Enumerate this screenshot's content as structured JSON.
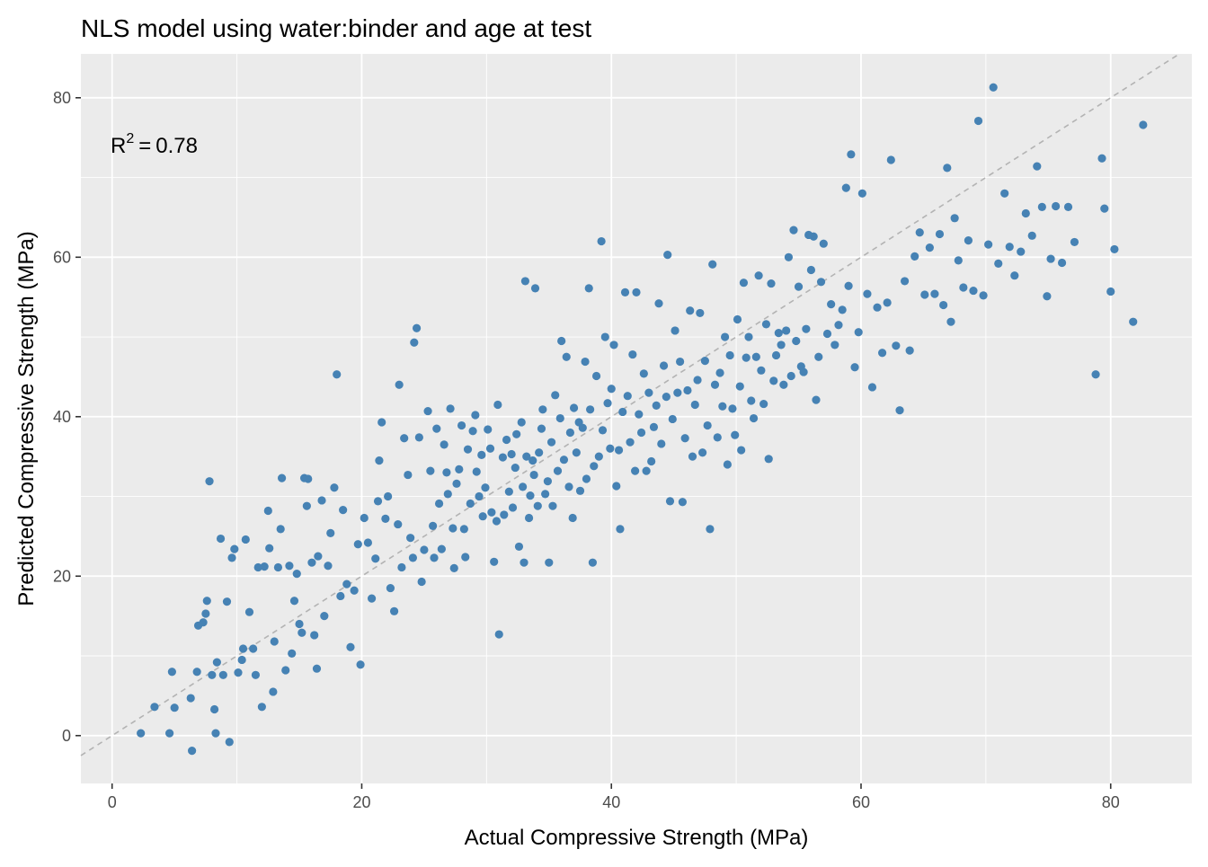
{
  "chart_data": {
    "type": "scatter",
    "title": "NLS model using water:binder and age at test",
    "xlabel": "Actual Compressive Strength (MPa)",
    "ylabel": "Predicted Compressive Strength (MPa)",
    "xlim": [
      -2.5,
      86.5
    ],
    "ylim": [
      -6,
      85.5
    ],
    "x_ticks": [
      0,
      20,
      40,
      60,
      80
    ],
    "y_ticks": [
      0,
      20,
      40,
      60,
      80
    ],
    "x_minor": [
      10,
      30,
      50,
      70
    ],
    "y_minor": [
      10,
      30,
      50,
      70
    ],
    "annotation": {
      "base": "R",
      "exponent": "2",
      "operator": "=",
      "value": "0.78"
    },
    "reference_line": {
      "type": "identity",
      "style": "dashed",
      "color": "#b3b3b3"
    },
    "colors": {
      "panel": "#ebebeb",
      "grid": "#ffffff",
      "point": "#4682b4"
    },
    "grid": true,
    "legend": "none",
    "points": [
      [
        2.3,
        0.3
      ],
      [
        3.4,
        3.6
      ],
      [
        4.6,
        0.3
      ],
      [
        4.8,
        8.0
      ],
      [
        5.0,
        3.5
      ],
      [
        6.3,
        4.7
      ],
      [
        6.4,
        -1.9
      ],
      [
        6.8,
        8.0
      ],
      [
        6.9,
        13.8
      ],
      [
        7.3,
        14.2
      ],
      [
        7.5,
        15.3
      ],
      [
        7.6,
        16.9
      ],
      [
        7.8,
        31.9
      ],
      [
        8.0,
        7.6
      ],
      [
        8.2,
        3.3
      ],
      [
        8.3,
        0.3
      ],
      [
        8.4,
        9.2
      ],
      [
        8.7,
        24.7
      ],
      [
        8.9,
        7.6
      ],
      [
        9.2,
        16.8
      ],
      [
        9.4,
        -0.8
      ],
      [
        9.6,
        22.3
      ],
      [
        9.8,
        23.4
      ],
      [
        10.1,
        7.9
      ],
      [
        10.4,
        9.5
      ],
      [
        10.5,
        10.9
      ],
      [
        10.7,
        24.6
      ],
      [
        11.0,
        15.5
      ],
      [
        11.3,
        10.9
      ],
      [
        11.5,
        7.6
      ],
      [
        11.7,
        21.1
      ],
      [
        12.0,
        3.6
      ],
      [
        12.2,
        21.2
      ],
      [
        12.5,
        28.2
      ],
      [
        12.6,
        23.5
      ],
      [
        12.9,
        5.5
      ],
      [
        13.0,
        11.8
      ],
      [
        13.3,
        21.1
      ],
      [
        13.5,
        25.9
      ],
      [
        13.6,
        32.3
      ],
      [
        13.9,
        8.2
      ],
      [
        14.2,
        21.3
      ],
      [
        14.4,
        10.3
      ],
      [
        14.6,
        16.9
      ],
      [
        14.8,
        20.3
      ],
      [
        15.0,
        14.0
      ],
      [
        15.2,
        12.9
      ],
      [
        15.4,
        32.3
      ],
      [
        15.6,
        28.8
      ],
      [
        15.7,
        32.2
      ],
      [
        16.0,
        21.7
      ],
      [
        16.2,
        12.6
      ],
      [
        16.4,
        8.4
      ],
      [
        16.5,
        22.5
      ],
      [
        16.8,
        29.5
      ],
      [
        17.0,
        15.0
      ],
      [
        17.3,
        21.3
      ],
      [
        17.5,
        25.4
      ],
      [
        17.8,
        31.1
      ],
      [
        18.0,
        45.3
      ],
      [
        18.3,
        17.5
      ],
      [
        18.5,
        28.3
      ],
      [
        18.8,
        19.0
      ],
      [
        19.1,
        11.1
      ],
      [
        19.4,
        18.2
      ],
      [
        19.7,
        24.0
      ],
      [
        19.9,
        8.9
      ],
      [
        20.2,
        27.3
      ],
      [
        20.5,
        24.2
      ],
      [
        20.8,
        17.2
      ],
      [
        21.1,
        22.2
      ],
      [
        21.3,
        29.4
      ],
      [
        21.4,
        34.5
      ],
      [
        21.6,
        39.3
      ],
      [
        21.9,
        27.2
      ],
      [
        22.1,
        30.0
      ],
      [
        22.3,
        18.5
      ],
      [
        22.6,
        15.6
      ],
      [
        22.9,
        26.5
      ],
      [
        23.0,
        44.0
      ],
      [
        23.2,
        21.1
      ],
      [
        23.4,
        37.3
      ],
      [
        23.7,
        32.7
      ],
      [
        23.9,
        24.8
      ],
      [
        24.1,
        22.3
      ],
      [
        24.2,
        49.3
      ],
      [
        24.4,
        51.1
      ],
      [
        24.6,
        37.4
      ],
      [
        24.8,
        19.3
      ],
      [
        25.0,
        23.3
      ],
      [
        25.3,
        40.7
      ],
      [
        25.5,
        33.2
      ],
      [
        25.7,
        26.3
      ],
      [
        25.8,
        22.3
      ],
      [
        26.0,
        38.5
      ],
      [
        26.2,
        29.1
      ],
      [
        26.4,
        23.4
      ],
      [
        26.6,
        36.5
      ],
      [
        26.8,
        33.0
      ],
      [
        26.9,
        30.3
      ],
      [
        27.1,
        41.0
      ],
      [
        27.3,
        26.0
      ],
      [
        27.4,
        21.0
      ],
      [
        27.6,
        31.6
      ],
      [
        27.8,
        33.4
      ],
      [
        28.0,
        38.9
      ],
      [
        28.2,
        25.9
      ],
      [
        28.3,
        22.4
      ],
      [
        28.5,
        35.9
      ],
      [
        28.7,
        29.1
      ],
      [
        28.9,
        38.2
      ],
      [
        29.1,
        40.2
      ],
      [
        29.2,
        33.1
      ],
      [
        29.4,
        30.0
      ],
      [
        29.6,
        35.2
      ],
      [
        29.7,
        27.5
      ],
      [
        29.9,
        31.1
      ],
      [
        30.1,
        38.4
      ],
      [
        30.3,
        36.0
      ],
      [
        30.4,
        28.0
      ],
      [
        30.6,
        21.8
      ],
      [
        30.8,
        26.9
      ],
      [
        30.9,
        41.5
      ],
      [
        31.0,
        12.7
      ],
      [
        31.3,
        34.9
      ],
      [
        31.4,
        27.7
      ],
      [
        31.6,
        37.1
      ],
      [
        31.8,
        30.6
      ],
      [
        32.0,
        35.3
      ],
      [
        32.1,
        28.6
      ],
      [
        32.3,
        33.6
      ],
      [
        32.4,
        37.8
      ],
      [
        32.6,
        23.7
      ],
      [
        32.8,
        39.3
      ],
      [
        32.9,
        31.2
      ],
      [
        33.0,
        21.7
      ],
      [
        33.1,
        57.0
      ],
      [
        33.2,
        35.0
      ],
      [
        33.4,
        27.3
      ],
      [
        33.5,
        30.1
      ],
      [
        33.7,
        34.5
      ],
      [
        33.8,
        32.7
      ],
      [
        33.9,
        56.1
      ],
      [
        34.1,
        28.8
      ],
      [
        34.2,
        35.5
      ],
      [
        34.4,
        38.5
      ],
      [
        34.5,
        40.9
      ],
      [
        34.7,
        30.3
      ],
      [
        34.9,
        31.9
      ],
      [
        35.0,
        21.7
      ],
      [
        35.2,
        36.8
      ],
      [
        35.3,
        28.8
      ],
      [
        35.5,
        42.7
      ],
      [
        35.7,
        33.2
      ],
      [
        35.9,
        39.8
      ],
      [
        36.0,
        49.5
      ],
      [
        36.2,
        34.6
      ],
      [
        36.4,
        47.5
      ],
      [
        36.6,
        31.2
      ],
      [
        36.7,
        38.0
      ],
      [
        36.9,
        27.3
      ],
      [
        37.0,
        41.1
      ],
      [
        37.2,
        35.5
      ],
      [
        37.4,
        39.3
      ],
      [
        37.5,
        30.7
      ],
      [
        37.7,
        38.6
      ],
      [
        37.9,
        46.9
      ],
      [
        38.0,
        32.2
      ],
      [
        38.2,
        56.1
      ],
      [
        38.3,
        40.9
      ],
      [
        38.5,
        21.7
      ],
      [
        38.6,
        33.8
      ],
      [
        38.8,
        45.1
      ],
      [
        39.0,
        35.0
      ],
      [
        39.2,
        62.0
      ],
      [
        39.3,
        38.3
      ],
      [
        39.5,
        50.0
      ],
      [
        39.7,
        41.7
      ],
      [
        39.9,
        36.0
      ],
      [
        40.0,
        43.5
      ],
      [
        40.2,
        49.0
      ],
      [
        40.4,
        31.3
      ],
      [
        40.6,
        35.8
      ],
      [
        40.7,
        25.9
      ],
      [
        40.9,
        40.6
      ],
      [
        41.1,
        55.6
      ],
      [
        41.3,
        42.6
      ],
      [
        41.5,
        36.8
      ],
      [
        41.7,
        47.8
      ],
      [
        41.9,
        33.2
      ],
      [
        42.0,
        55.6
      ],
      [
        42.2,
        40.3
      ],
      [
        42.4,
        38.0
      ],
      [
        42.6,
        45.4
      ],
      [
        42.8,
        33.2
      ],
      [
        43.0,
        43.0
      ],
      [
        43.2,
        34.4
      ],
      [
        43.4,
        38.7
      ],
      [
        43.6,
        41.4
      ],
      [
        43.8,
        54.2
      ],
      [
        44.0,
        36.6
      ],
      [
        44.2,
        46.4
      ],
      [
        44.4,
        42.5
      ],
      [
        44.5,
        60.3
      ],
      [
        44.7,
        29.4
      ],
      [
        44.9,
        39.7
      ],
      [
        45.1,
        50.8
      ],
      [
        45.3,
        43.0
      ],
      [
        45.5,
        46.9
      ],
      [
        45.7,
        29.3
      ],
      [
        45.9,
        37.3
      ],
      [
        46.1,
        43.3
      ],
      [
        46.3,
        53.3
      ],
      [
        46.5,
        35.0
      ],
      [
        46.7,
        41.5
      ],
      [
        46.9,
        44.6
      ],
      [
        47.1,
        53.0
      ],
      [
        47.3,
        35.5
      ],
      [
        47.5,
        47.0
      ],
      [
        47.7,
        38.9
      ],
      [
        47.9,
        25.9
      ],
      [
        48.1,
        59.1
      ],
      [
        48.3,
        44.0
      ],
      [
        48.5,
        37.4
      ],
      [
        48.7,
        45.5
      ],
      [
        48.9,
        41.3
      ],
      [
        49.1,
        50.0
      ],
      [
        49.3,
        34.0
      ],
      [
        49.5,
        47.7
      ],
      [
        49.7,
        41.0
      ],
      [
        49.9,
        37.7
      ],
      [
        50.1,
        52.2
      ],
      [
        50.3,
        43.8
      ],
      [
        50.4,
        35.8
      ],
      [
        50.6,
        56.8
      ],
      [
        50.8,
        47.4
      ],
      [
        51.0,
        50.0
      ],
      [
        51.2,
        42.0
      ],
      [
        51.4,
        39.8
      ],
      [
        51.6,
        47.5
      ],
      [
        51.8,
        57.7
      ],
      [
        52.0,
        45.8
      ],
      [
        52.2,
        41.6
      ],
      [
        52.4,
        51.6
      ],
      [
        52.6,
        34.7
      ],
      [
        52.8,
        56.7
      ],
      [
        53.0,
        44.5
      ],
      [
        53.2,
        47.7
      ],
      [
        53.4,
        50.5
      ],
      [
        53.6,
        49.0
      ],
      [
        53.8,
        44.0
      ],
      [
        54.0,
        50.8
      ],
      [
        54.2,
        60.0
      ],
      [
        54.4,
        45.1
      ],
      [
        54.6,
        63.4
      ],
      [
        54.8,
        49.5
      ],
      [
        55.0,
        56.3
      ],
      [
        55.2,
        46.3
      ],
      [
        55.4,
        45.6
      ],
      [
        55.6,
        51.0
      ],
      [
        55.8,
        62.8
      ],
      [
        56.0,
        58.4
      ],
      [
        56.2,
        62.6
      ],
      [
        56.4,
        42.1
      ],
      [
        56.6,
        47.5
      ],
      [
        56.8,
        56.9
      ],
      [
        57.0,
        61.7
      ],
      [
        57.3,
        50.4
      ],
      [
        57.6,
        54.1
      ],
      [
        57.9,
        49.0
      ],
      [
        58.2,
        51.5
      ],
      [
        58.5,
        53.4
      ],
      [
        58.8,
        68.7
      ],
      [
        59.0,
        56.4
      ],
      [
        59.2,
        72.9
      ],
      [
        59.5,
        46.2
      ],
      [
        59.8,
        50.6
      ],
      [
        60.1,
        68.0
      ],
      [
        60.5,
        55.4
      ],
      [
        60.9,
        43.7
      ],
      [
        61.3,
        53.7
      ],
      [
        61.7,
        48.0
      ],
      [
        62.1,
        54.3
      ],
      [
        62.4,
        72.2
      ],
      [
        62.8,
        48.9
      ],
      [
        63.1,
        40.8
      ],
      [
        63.5,
        57.0
      ],
      [
        63.9,
        48.3
      ],
      [
        64.3,
        60.1
      ],
      [
        64.7,
        63.1
      ],
      [
        65.1,
        55.3
      ],
      [
        65.5,
        61.2
      ],
      [
        65.9,
        55.4
      ],
      [
        66.3,
        62.9
      ],
      [
        66.6,
        54.0
      ],
      [
        66.9,
        71.2
      ],
      [
        67.2,
        51.9
      ],
      [
        67.5,
        64.9
      ],
      [
        67.8,
        59.6
      ],
      [
        68.2,
        56.2
      ],
      [
        68.6,
        62.1
      ],
      [
        69.0,
        55.8
      ],
      [
        69.4,
        77.1
      ],
      [
        69.8,
        55.2
      ],
      [
        70.2,
        61.6
      ],
      [
        70.6,
        81.3
      ],
      [
        71.0,
        59.2
      ],
      [
        71.5,
        68.0
      ],
      [
        71.9,
        61.3
      ],
      [
        72.3,
        57.7
      ],
      [
        72.8,
        60.7
      ],
      [
        73.2,
        65.5
      ],
      [
        73.7,
        62.7
      ],
      [
        74.1,
        71.4
      ],
      [
        74.5,
        66.3
      ],
      [
        74.9,
        55.1
      ],
      [
        75.2,
        59.8
      ],
      [
        75.6,
        66.4
      ],
      [
        76.1,
        59.3
      ],
      [
        76.6,
        66.3
      ],
      [
        77.1,
        61.9
      ],
      [
        78.8,
        45.3
      ],
      [
        79.3,
        72.4
      ],
      [
        79.5,
        66.1
      ],
      [
        80.0,
        55.7
      ],
      [
        80.3,
        61.0
      ],
      [
        81.8,
        51.9
      ],
      [
        82.6,
        76.6
      ]
    ]
  }
}
